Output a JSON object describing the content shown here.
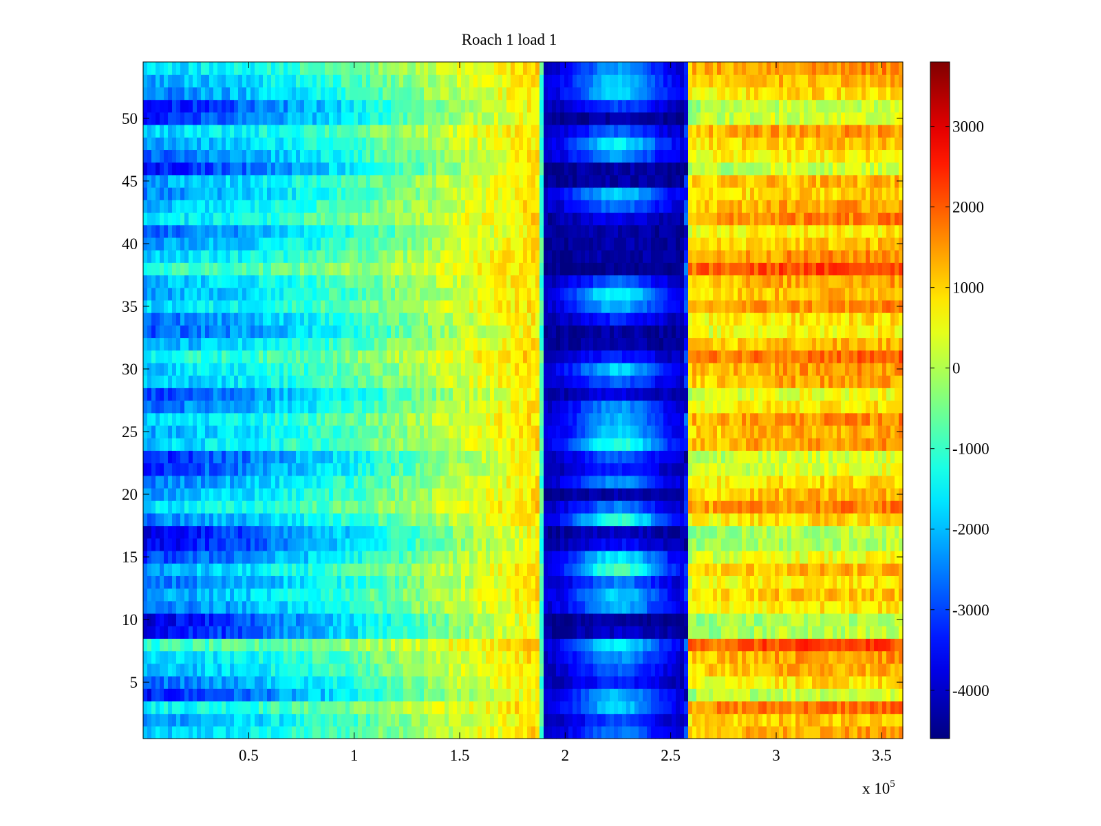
{
  "chart_data": {
    "type": "heatmap",
    "title": "Roach 1 load 1",
    "xlabel": "",
    "ylabel": "",
    "x_exponent_label": {
      "base": "x 10",
      "exponent": "5"
    },
    "xlim": [
      0,
      3.6
    ],
    "ylim": [
      0.5,
      54.5
    ],
    "xticks": [
      0.5,
      1,
      1.5,
      2,
      2.5,
      3,
      3.5
    ],
    "xtick_labels": [
      "0.5",
      "1",
      "1.5",
      "2",
      "2.5",
      "3",
      "3.5"
    ],
    "yticks": [
      5,
      10,
      15,
      20,
      25,
      30,
      35,
      40,
      45,
      50
    ],
    "ytick_labels": [
      "5",
      "10",
      "15",
      "20",
      "25",
      "30",
      "35",
      "40",
      "45",
      "50"
    ],
    "rows": 54,
    "colormap": "jet",
    "colorbar": {
      "clim": [
        -4600,
        3800
      ],
      "ticks": [
        -4000,
        -3000,
        -2000,
        -1000,
        0,
        1000,
        2000,
        3000
      ],
      "tick_labels": [
        "-4000",
        "-3000",
        "-2000",
        "-1000",
        "0",
        "1000",
        "2000",
        "3000"
      ]
    },
    "row_depth": [
      -0.2,
      -0.35,
      0.05,
      -0.85,
      -0.5,
      -0.25,
      -0.15,
      0.25,
      -0.95,
      -1.0,
      -0.5,
      -0.35,
      -0.55,
      -0.3,
      -0.7,
      -1.0,
      -1.0,
      -0.45,
      -0.05,
      -0.3,
      -0.45,
      -0.75,
      -0.8,
      -0.15,
      -0.25,
      -0.1,
      -0.5,
      -0.7,
      -0.2,
      -0.15,
      0.1,
      -0.3,
      -0.6,
      -0.5,
      -0.1,
      -0.3,
      -0.2,
      0.25,
      -0.1,
      -0.35,
      -0.55,
      -0.05,
      -0.2,
      -0.4,
      -0.3,
      -0.85,
      -0.55,
      -0.35,
      -0.15,
      -0.8,
      -0.9,
      -0.45,
      -0.3,
      -0.1
    ],
    "band_depth": [
      0.4,
      0.3,
      0.55,
      0.5,
      0.25,
      0.35,
      0.45,
      0.6,
      0.1,
      0.05,
      0.5,
      0.55,
      0.4,
      0.75,
      0.6,
      0.2,
      0.1,
      0.7,
      0.4,
      0.05,
      0.45,
      0.25,
      0.35,
      0.7,
      0.55,
      0.5,
      0.45,
      0.15,
      0.35,
      0.55,
      0.25,
      0.05,
      0.05,
      0.25,
      0.5,
      0.65,
      0.35,
      0.0,
      0.05,
      0.05,
      0.05,
      0.15,
      0.4,
      0.55,
      0.05,
      0.05,
      0.45,
      0.6,
      0.35,
      0.05,
      0.3,
      0.55,
      0.55,
      0.45
    ],
    "column_profile": [
      {
        "x": 0.0,
        "level": -1600
      },
      {
        "x": 0.5,
        "level": -1200
      },
      {
        "x": 1.0,
        "level": -500
      },
      {
        "x": 1.5,
        "level": 400
      },
      {
        "x": 1.88,
        "level": 1000
      },
      {
        "x": 1.9,
        "level": -3500
      },
      {
        "x": 2.57,
        "level": -3500
      },
      {
        "x": 2.59,
        "level": 1400
      },
      {
        "x": 3.0,
        "level": 1700
      },
      {
        "x": 3.6,
        "level": 1800
      }
    ]
  }
}
